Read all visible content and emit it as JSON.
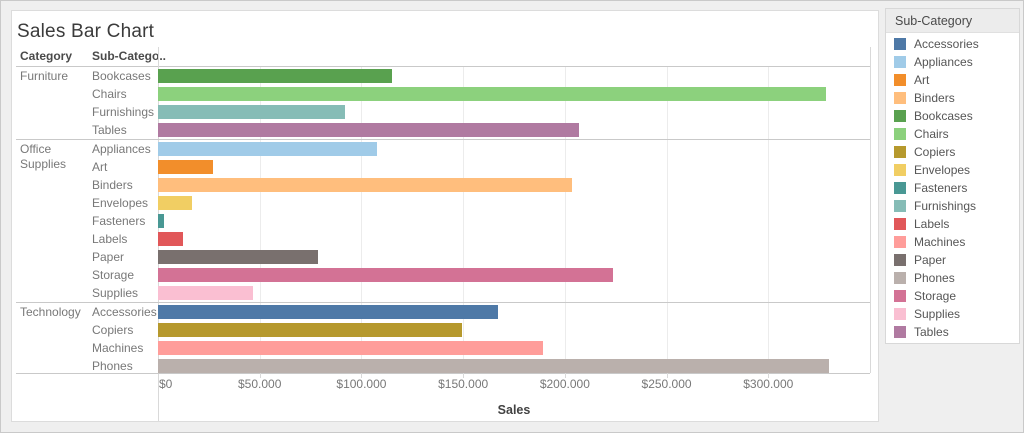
{
  "title": "Sales Bar Chart",
  "columns": {
    "category": "Category",
    "subcategory": "Sub-Catego.."
  },
  "axis": {
    "label": "Sales",
    "tick_labels": [
      "$0",
      "$50.000",
      "$100.000",
      "$150.000",
      "$200.000",
      "$250.000",
      "$300.000"
    ],
    "tick_values": [
      0,
      50000,
      100000,
      150000,
      200000,
      250000,
      300000
    ]
  },
  "legend": {
    "title": "Sub-Category",
    "items": [
      {
        "label": "Accessories",
        "color": "#4E79A7"
      },
      {
        "label": "Appliances",
        "color": "#A0CBE8"
      },
      {
        "label": "Art",
        "color": "#F28E2B"
      },
      {
        "label": "Binders",
        "color": "#FFBE7D"
      },
      {
        "label": "Bookcases",
        "color": "#59A14F"
      },
      {
        "label": "Chairs",
        "color": "#8CD17D"
      },
      {
        "label": "Copiers",
        "color": "#B6992D"
      },
      {
        "label": "Envelopes",
        "color": "#F1CE63"
      },
      {
        "label": "Fasteners",
        "color": "#499894"
      },
      {
        "label": "Furnishings",
        "color": "#86BCB6"
      },
      {
        "label": "Labels",
        "color": "#E15759"
      },
      {
        "label": "Machines",
        "color": "#FF9D9A"
      },
      {
        "label": "Paper",
        "color": "#79706E"
      },
      {
        "label": "Phones",
        "color": "#BAB0AC"
      },
      {
        "label": "Storage",
        "color": "#D37295"
      },
      {
        "label": "Supplies",
        "color": "#FABFD2"
      },
      {
        "label": "Tables",
        "color": "#B07AA1"
      }
    ]
  },
  "chart_data": {
    "type": "bar",
    "orientation": "horizontal",
    "title": "Sales Bar Chart",
    "xlabel": "Sales",
    "xlim": [
      0,
      350000
    ],
    "grid": "vertical",
    "legend_position": "right",
    "groups": [
      {
        "category": "Furniture",
        "rows": [
          {
            "subcategory": "Bookcases",
            "value": 114880,
            "color": "#59A14F"
          },
          {
            "subcategory": "Chairs",
            "value": 328449,
            "color": "#8CD17D"
          },
          {
            "subcategory": "Furnishings",
            "value": 91705,
            "color": "#86BCB6"
          },
          {
            "subcategory": "Tables",
            "value": 206966,
            "color": "#B07AA1"
          }
        ]
      },
      {
        "category": "Office Supplies",
        "rows": [
          {
            "subcategory": "Appliances",
            "value": 107532,
            "color": "#A0CBE8"
          },
          {
            "subcategory": "Art",
            "value": 27119,
            "color": "#F28E2B"
          },
          {
            "subcategory": "Binders",
            "value": 203413,
            "color": "#FFBE7D"
          },
          {
            "subcategory": "Envelopes",
            "value": 16476,
            "color": "#F1CE63"
          },
          {
            "subcategory": "Fasteners",
            "value": 3024,
            "color": "#499894"
          },
          {
            "subcategory": "Labels",
            "value": 12486,
            "color": "#E15759"
          },
          {
            "subcategory": "Paper",
            "value": 78479,
            "color": "#79706E"
          },
          {
            "subcategory": "Storage",
            "value": 223844,
            "color": "#D37295"
          },
          {
            "subcategory": "Supplies",
            "value": 46674,
            "color": "#FABFD2"
          }
        ]
      },
      {
        "category": "Technology",
        "rows": [
          {
            "subcategory": "Accessories",
            "value": 167380,
            "color": "#4E79A7"
          },
          {
            "subcategory": "Copiers",
            "value": 149528,
            "color": "#B6992D"
          },
          {
            "subcategory": "Machines",
            "value": 189239,
            "color": "#FF9D9A"
          },
          {
            "subcategory": "Phones",
            "value": 330007,
            "color": "#BAB0AC"
          }
        ]
      }
    ]
  }
}
